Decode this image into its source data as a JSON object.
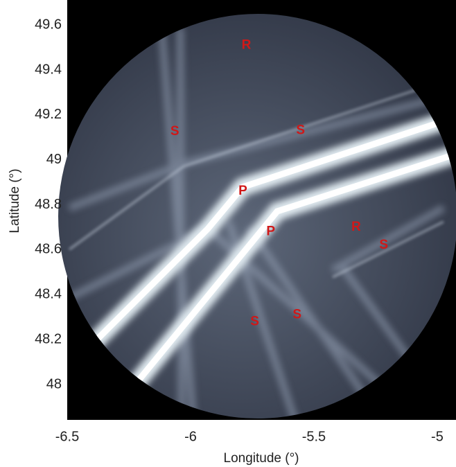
{
  "chart_data": {
    "type": "density-map",
    "xlabel": "Longitude (°)",
    "ylabel": "Latitude (°)",
    "xlim": [
      -6.5,
      -4.924
    ],
    "ylim": [
      47.846,
      49.696
    ],
    "xticks": [
      -6.5,
      -6,
      -5.5,
      -5
    ],
    "yticks": [
      48,
      48.2,
      48.4,
      48.6,
      48.8,
      49,
      49.2,
      49.4,
      49.6
    ],
    "annotations": [
      {
        "text": "R",
        "x": -5.774,
        "y": 49.51
      },
      {
        "text": "S",
        "x": -6.064,
        "y": 49.125
      },
      {
        "text": "S",
        "x": -5.554,
        "y": 49.13
      },
      {
        "text": "P",
        "x": -5.788,
        "y": 48.86
      },
      {
        "text": "P",
        "x": -5.675,
        "y": 48.68
      },
      {
        "text": "R",
        "x": -5.329,
        "y": 48.7
      },
      {
        "text": "S",
        "x": -5.217,
        "y": 48.62
      },
      {
        "text": "S",
        "x": -5.74,
        "y": 48.28
      },
      {
        "text": "S",
        "x": -5.568,
        "y": 48.31
      }
    ]
  }
}
